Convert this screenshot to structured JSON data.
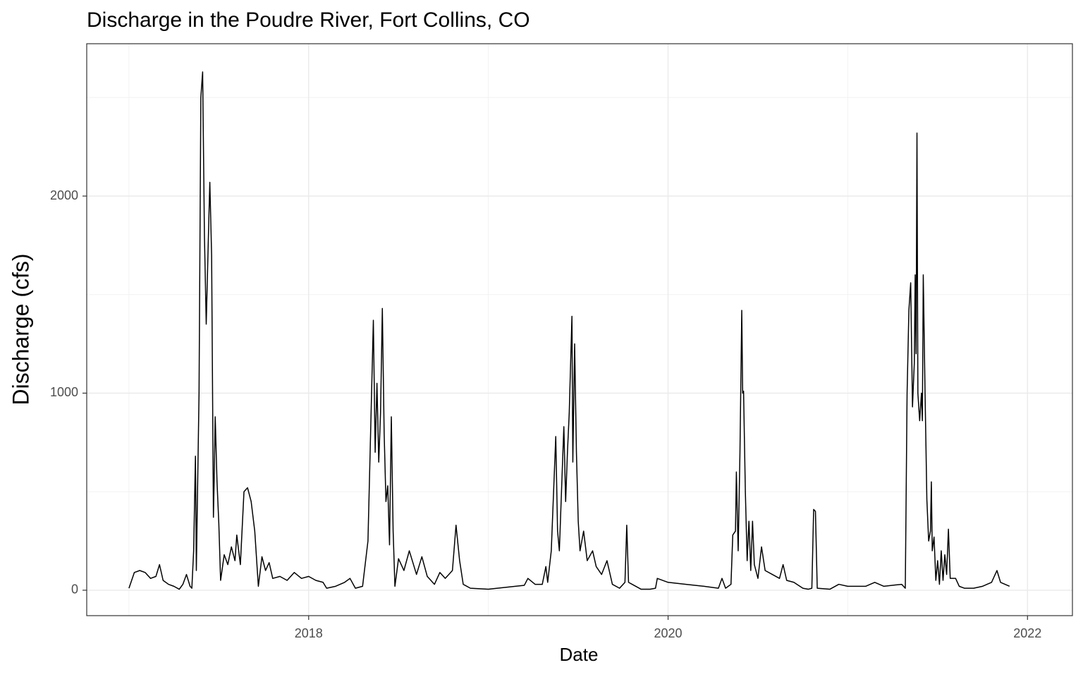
{
  "chart_data": {
    "type": "line",
    "title": "Discharge in the Poudre River, Fort Collins, CO",
    "x_label": "Date",
    "y_label": "Discharge (cfs)",
    "xlim": [
      2016.765,
      2022.25
    ],
    "ylim": [
      -129,
      2773
    ],
    "xticks": [
      2018,
      2020,
      2022
    ],
    "yticks": [
      0,
      1000,
      2000
    ],
    "grid": true,
    "series": [
      {
        "color": "#000000",
        "x": [
          2017.0,
          2017.03,
          2017.06,
          2017.09,
          2017.12,
          2017.15,
          2017.17,
          2017.19,
          2017.22,
          2017.25,
          2017.28,
          2017.3,
          2017.32,
          2017.34,
          2017.35,
          2017.36,
          2017.37,
          2017.375,
          2017.39,
          2017.4,
          2017.41,
          2017.42,
          2017.43,
          2017.445,
          2017.45,
          2017.46,
          2017.47,
          2017.475,
          2017.48,
          2017.49,
          2017.5,
          2017.51,
          2017.53,
          2017.55,
          2017.57,
          2017.59,
          2017.6,
          2017.62,
          2017.64,
          2017.66,
          2017.68,
          2017.7,
          2017.72,
          2017.74,
          2017.76,
          2017.78,
          2017.8,
          2017.84,
          2017.88,
          2017.92,
          2017.96,
          2018.0,
          2018.04,
          2018.08,
          2018.1,
          2018.15,
          2018.2,
          2018.23,
          2018.26,
          2018.3,
          2018.33,
          2018.36,
          2018.37,
          2018.38,
          2018.39,
          2018.4,
          2018.41,
          2018.42,
          2018.43,
          2018.44,
          2018.45,
          2018.46,
          2018.47,
          2018.48,
          2018.5,
          2018.53,
          2018.56,
          2018.6,
          2018.63,
          2018.66,
          2018.7,
          2018.73,
          2018.76,
          2018.8,
          2018.82,
          2018.84,
          2018.86,
          2018.9,
          2019.0,
          2019.1,
          2019.2,
          2019.22,
          2019.26,
          2019.3,
          2019.32,
          2019.33,
          2019.35,
          2019.375,
          2019.385,
          2019.395,
          2019.41,
          2019.42,
          2019.43,
          2019.44,
          2019.45,
          2019.465,
          2019.47,
          2019.48,
          2019.49,
          2019.5,
          2019.51,
          2019.53,
          2019.55,
          2019.58,
          2019.6,
          2019.63,
          2019.66,
          2019.69,
          2019.73,
          2019.76,
          2019.77,
          2019.78,
          2019.8,
          2019.85,
          2019.9,
          2019.93,
          2019.94,
          2020.0,
          2020.1,
          2020.2,
          2020.28,
          2020.3,
          2020.32,
          2020.35,
          2020.36,
          2020.375,
          2020.38,
          2020.39,
          2020.4,
          2020.41,
          2020.415,
          2020.42,
          2020.43,
          2020.44,
          2020.45,
          2020.46,
          2020.47,
          2020.48,
          2020.5,
          2020.52,
          2020.54,
          2020.58,
          2020.62,
          2020.64,
          2020.66,
          2020.7,
          2020.75,
          2020.78,
          2020.8,
          2020.81,
          2020.82,
          2020.83,
          2020.9,
          2020.95,
          2021.0,
          2021.1,
          2021.15,
          2021.2,
          2021.3,
          2021.32,
          2021.33,
          2021.34,
          2021.35,
          2021.36,
          2021.37,
          2021.375,
          2021.38,
          2021.385,
          2021.39,
          2021.4,
          2021.41,
          2021.415,
          2021.42,
          2021.43,
          2021.44,
          2021.45,
          2021.46,
          2021.465,
          2021.47,
          2021.48,
          2021.49,
          2021.5,
          2021.51,
          2021.52,
          2021.53,
          2021.54,
          2021.55,
          2021.56,
          2021.57,
          2021.6,
          2021.62,
          2021.65,
          2021.7,
          2021.75,
          2021.8,
          2021.83,
          2021.85,
          2021.9
        ],
        "values": [
          10,
          90,
          100,
          90,
          60,
          70,
          130,
          50,
          30,
          20,
          5,
          30,
          80,
          20,
          10,
          200,
          680,
          100,
          1000,
          2500,
          2630,
          1800,
          1350,
          1900,
          2070,
          1700,
          370,
          600,
          880,
          550,
          340,
          50,
          180,
          130,
          220,
          150,
          280,
          130,
          500,
          520,
          450,
          300,
          20,
          170,
          100,
          140,
          60,
          70,
          50,
          90,
          60,
          70,
          50,
          40,
          10,
          20,
          40,
          60,
          10,
          20,
          250,
          1370,
          700,
          1050,
          650,
          900,
          1430,
          800,
          450,
          530,
          230,
          880,
          300,
          20,
          160,
          100,
          200,
          80,
          170,
          70,
          30,
          90,
          60,
          100,
          330,
          150,
          30,
          10,
          5,
          15,
          25,
          60,
          30,
          30,
          120,
          40,
          200,
          780,
          300,
          200,
          580,
          830,
          450,
          700,
          900,
          1390,
          650,
          1250,
          700,
          350,
          200,
          300,
          150,
          200,
          120,
          80,
          150,
          30,
          10,
          40,
          330,
          40,
          30,
          5,
          5,
          10,
          60,
          40,
          30,
          20,
          10,
          60,
          10,
          30,
          280,
          300,
          600,
          200,
          700,
          1420,
          1000,
          1010,
          500,
          150,
          350,
          100,
          350,
          130,
          60,
          220,
          100,
          80,
          60,
          130,
          50,
          40,
          10,
          5,
          10,
          410,
          400,
          10,
          5,
          30,
          20,
          20,
          40,
          20,
          30,
          10,
          1000,
          1420,
          1560,
          930,
          1150,
          1600,
          1200,
          2320,
          1000,
          860,
          1000,
          860,
          1600,
          1000,
          460,
          250,
          300,
          550,
          200,
          270,
          50,
          150,
          30,
          200,
          50,
          180,
          80,
          310,
          60,
          60,
          20,
          10,
          10,
          20,
          40,
          100,
          40,
          20
        ]
      }
    ]
  }
}
